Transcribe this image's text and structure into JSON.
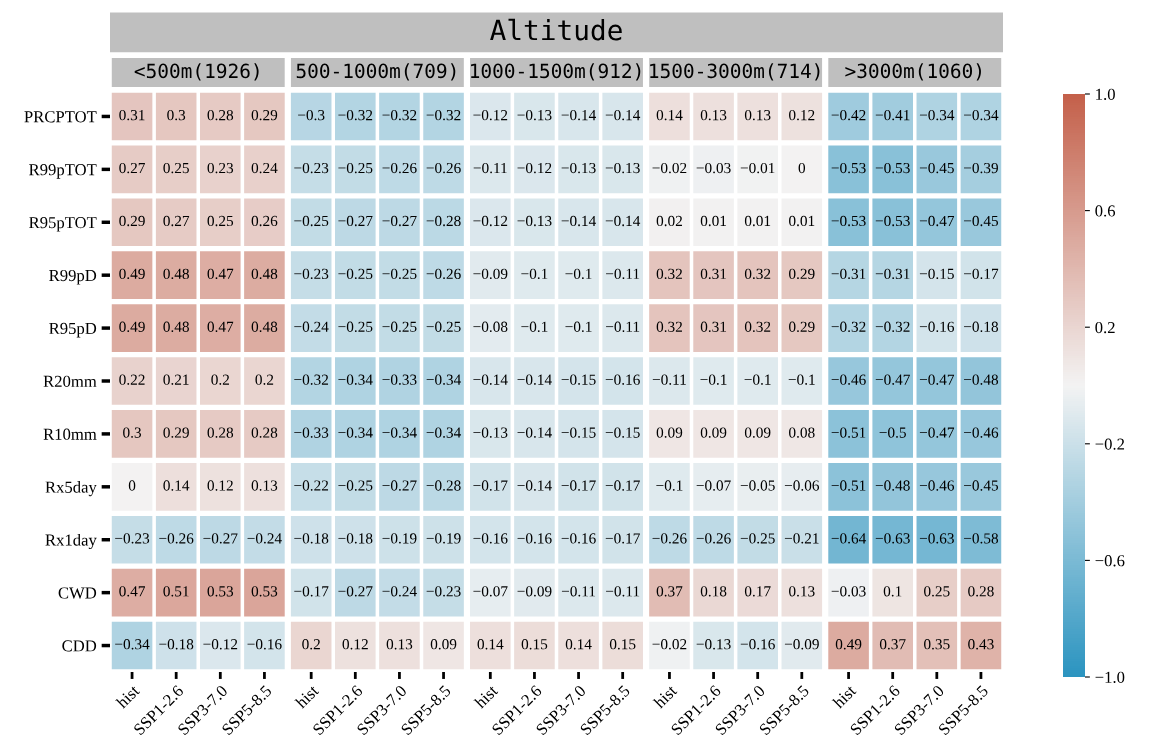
{
  "chart_data": {
    "type": "heatmap",
    "title": "Altitude",
    "annotations": [
      "<500m(1926)",
      "500-1000m(709)",
      "1000-1500m(912)",
      "1500-3000m(714)",
      ">3000m(1060)"
    ],
    "categories": [
      "hist",
      "SSP1-2.6",
      "SSP3-7.0",
      "SSP5-8.5",
      "hist",
      "SSP1-2.6",
      "SSP3-7.0",
      "SSP5-8.5",
      "hist",
      "SSP1-2.6",
      "SSP3-7.0",
      "SSP5-8.5",
      "hist",
      "SSP1-2.6",
      "SSP3-7.0",
      "SSP5-8.5",
      "hist",
      "SSP1-2.6",
      "SSP3-7.0",
      "SSP5-8.5"
    ],
    "y_categories": [
      "PRCPTOT",
      "R99pTOT",
      "R95pTOT",
      "R99pD",
      "R95pD",
      "R20mm",
      "R10mm",
      "Rx5day",
      "Rx1day",
      "CWD",
      "CDD"
    ],
    "data_labels": true,
    "clim": [
      -1,
      1
    ],
    "cticks": [
      {
        "value": -1,
        "label": "−1.0"
      },
      {
        "value": -0.6,
        "label": "−0.6"
      },
      {
        "value": -0.2,
        "label": "−0.2"
      },
      {
        "value": 0.2,
        "label": "0.2"
      },
      {
        "value": 0.6,
        "label": "0.6"
      },
      {
        "value": 1,
        "label": "1.0"
      }
    ],
    "cells": [
      [
        0.31,
        0.3,
        0.28,
        0.29,
        -0.3,
        -0.32,
        -0.32,
        -0.32,
        -0.12,
        -0.13,
        -0.14,
        -0.14,
        0.14,
        0.13,
        0.13,
        0.12,
        -0.42,
        -0.41,
        -0.34,
        -0.34
      ],
      [
        0.27,
        0.25,
        0.23,
        0.24,
        -0.23,
        -0.25,
        -0.26,
        -0.26,
        -0.11,
        -0.12,
        -0.13,
        -0.13,
        -0.02,
        -0.03,
        -0.01,
        0,
        -0.53,
        -0.53,
        -0.45,
        -0.39
      ],
      [
        0.29,
        0.27,
        0.25,
        0.26,
        -0.25,
        -0.27,
        -0.27,
        -0.28,
        -0.12,
        -0.13,
        -0.14,
        -0.14,
        0.02,
        0.01,
        0.01,
        0.01,
        -0.53,
        -0.53,
        -0.47,
        -0.45
      ],
      [
        0.49,
        0.48,
        0.47,
        0.48,
        -0.23,
        -0.25,
        -0.25,
        -0.26,
        -0.09,
        -0.1,
        -0.1,
        -0.11,
        0.32,
        0.31,
        0.32,
        0.29,
        -0.31,
        -0.31,
        -0.15,
        -0.17
      ],
      [
        0.49,
        0.48,
        0.47,
        0.48,
        -0.24,
        -0.25,
        -0.25,
        -0.25,
        -0.08,
        -0.1,
        -0.1,
        -0.11,
        0.32,
        0.31,
        0.32,
        0.29,
        -0.32,
        -0.32,
        -0.16,
        -0.18
      ],
      [
        0.22,
        0.21,
        0.2,
        0.2,
        -0.32,
        -0.34,
        -0.33,
        -0.34,
        -0.14,
        -0.14,
        -0.15,
        -0.16,
        -0.11,
        -0.1,
        -0.1,
        -0.1,
        -0.46,
        -0.47,
        -0.47,
        -0.48
      ],
      [
        0.3,
        0.29,
        0.28,
        0.28,
        -0.33,
        -0.34,
        -0.34,
        -0.34,
        -0.13,
        -0.14,
        -0.15,
        -0.15,
        0.09,
        0.09,
        0.09,
        0.08,
        -0.51,
        -0.5,
        -0.47,
        -0.46
      ],
      [
        0,
        0.14,
        0.12,
        0.13,
        -0.22,
        -0.25,
        -0.27,
        -0.28,
        -0.17,
        -0.14,
        -0.17,
        -0.17,
        -0.1,
        -0.07,
        -0.05,
        -0.06,
        -0.51,
        -0.48,
        -0.46,
        -0.45
      ],
      [
        -0.23,
        -0.26,
        -0.27,
        -0.24,
        -0.18,
        -0.18,
        -0.19,
        -0.19,
        -0.16,
        -0.16,
        -0.16,
        -0.17,
        -0.26,
        -0.26,
        -0.25,
        -0.21,
        -0.64,
        -0.63,
        -0.63,
        -0.58
      ],
      [
        0.47,
        0.51,
        0.53,
        0.53,
        -0.17,
        -0.27,
        -0.24,
        -0.23,
        -0.07,
        -0.09,
        -0.11,
        -0.11,
        0.37,
        0.18,
        0.17,
        0.13,
        -0.03,
        0.1,
        0.25,
        0.28
      ],
      [
        -0.34,
        -0.18,
        -0.12,
        -0.16,
        0.2,
        0.12,
        0.13,
        0.09,
        0.14,
        0.15,
        0.14,
        0.15,
        -0.02,
        -0.13,
        -0.16,
        -0.09,
        0.49,
        0.37,
        0.35,
        0.43
      ]
    ]
  }
}
